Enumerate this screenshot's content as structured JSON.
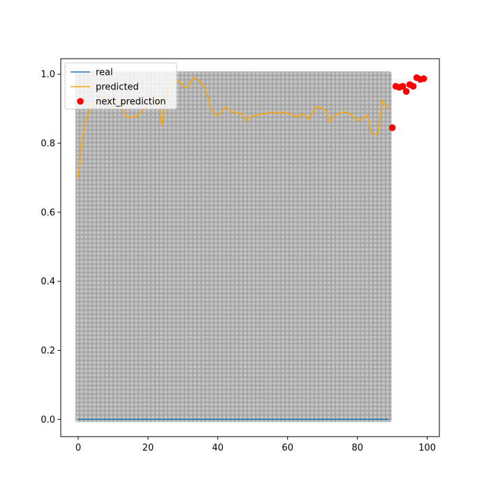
{
  "chart_data": {
    "type": "line",
    "title": "",
    "xlabel": "",
    "ylabel": "",
    "xlim": [
      -5,
      103.5
    ],
    "ylim": [
      -0.05,
      1.045
    ],
    "xticks": [
      0,
      20,
      40,
      60,
      80,
      100
    ],
    "yticks": [
      0.0,
      0.2,
      0.4,
      0.6,
      0.8,
      1.0
    ],
    "xtick_labels": [
      "0",
      "20",
      "40",
      "60",
      "80",
      "100"
    ],
    "ytick_labels": [
      "0.0",
      "0.2",
      "0.4",
      "0.6",
      "0.8",
      "1.0"
    ],
    "grid": false,
    "legend_position": "upper-left",
    "background_band": {
      "x": [
        0,
        89
      ],
      "y": [
        0,
        1
      ],
      "color": "#a9a9a9",
      "description": "dense grey marker field"
    },
    "series": [
      {
        "name": "real",
        "color": "#1f77b4",
        "kind": "line",
        "x": [
          0,
          89
        ],
        "y": [
          0.0,
          0.0
        ]
      },
      {
        "name": "predicted",
        "color": "#ffa500",
        "kind": "line",
        "x": [
          0,
          1,
          2,
          3,
          4,
          5,
          6,
          7,
          8,
          9,
          10,
          11,
          12,
          13,
          14,
          15,
          16,
          17,
          18,
          19,
          20,
          21,
          22,
          23,
          24,
          25,
          26,
          27,
          28,
          29,
          30,
          31,
          32,
          33,
          34,
          35,
          36,
          37,
          38,
          39,
          40,
          41,
          42,
          43,
          44,
          45,
          46,
          47,
          48,
          49,
          50,
          51,
          52,
          53,
          54,
          55,
          56,
          57,
          58,
          59,
          60,
          61,
          62,
          63,
          64,
          65,
          66,
          67,
          68,
          69,
          70,
          71,
          72,
          73,
          74,
          75,
          76,
          77,
          78,
          79,
          80,
          81,
          82,
          83,
          84,
          85,
          86,
          87,
          88,
          89
        ],
        "y": [
          0.7,
          0.8,
          0.86,
          0.89,
          0.91,
          0.92,
          0.93,
          0.93,
          0.93,
          0.92,
          0.92,
          0.92,
          0.92,
          0.89,
          0.875,
          0.875,
          0.875,
          0.88,
          0.89,
          0.9,
          0.92,
          0.92,
          0.93,
          0.93,
          0.85,
          0.93,
          0.96,
          0.97,
          0.975,
          0.98,
          0.965,
          0.96,
          0.975,
          0.99,
          0.985,
          0.975,
          0.965,
          0.94,
          0.9,
          0.885,
          0.88,
          0.89,
          0.905,
          0.9,
          0.89,
          0.89,
          0.885,
          0.885,
          0.865,
          0.875,
          0.88,
          0.88,
          0.885,
          0.885,
          0.885,
          0.89,
          0.89,
          0.885,
          0.89,
          0.89,
          0.885,
          0.885,
          0.88,
          0.875,
          0.885,
          0.88,
          0.87,
          0.885,
          0.905,
          0.905,
          0.9,
          0.895,
          0.86,
          0.875,
          0.885,
          0.885,
          0.89,
          0.89,
          0.885,
          0.875,
          0.865,
          0.87,
          0.875,
          0.88,
          0.83,
          0.825,
          0.83,
          0.925,
          0.91,
          0.9
        ]
      },
      {
        "name": "next_prediction",
        "color": "#ff0000",
        "kind": "scatter",
        "x": [
          90,
          91,
          92,
          93,
          94,
          95,
          96,
          97,
          98,
          99
        ],
        "y": [
          0.845,
          0.965,
          0.962,
          0.965,
          0.95,
          0.97,
          0.965,
          0.99,
          0.985,
          0.987
        ]
      }
    ]
  }
}
